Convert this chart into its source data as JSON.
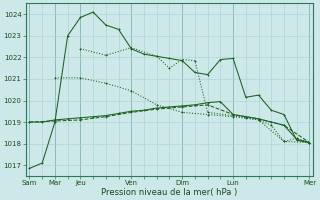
{
  "xlabel": "Pression niveau de la mer( hPa )",
  "bg_color": "#cce8e8",
  "grid_color": "#aacfcf",
  "line_color": "#1a6020",
  "ylim": [
    1016.5,
    1024.5
  ],
  "xlim": [
    -0.3,
    22.3
  ],
  "xtick_major_labels": [
    "Sam",
    "Mar",
    "Jeu",
    "Ven",
    "Dim",
    "Lun",
    "Mer"
  ],
  "xtick_major_positions": [
    0,
    2,
    4,
    8,
    12,
    16,
    22
  ],
  "ytick_values": [
    1017,
    1018,
    1019,
    1020,
    1021,
    1022,
    1023,
    1024
  ],
  "line1_x": [
    0,
    1,
    2,
    3,
    4,
    5,
    6,
    7,
    8,
    9,
    10,
    11,
    12,
    13,
    14,
    15,
    16,
    17,
    18,
    19,
    20,
    21,
    22
  ],
  "line1_y": [
    1016.85,
    1017.1,
    1019.0,
    1023.0,
    1023.85,
    1024.1,
    1023.5,
    1023.3,
    1022.4,
    1022.15,
    1022.05,
    1021.95,
    1021.85,
    1021.3,
    1021.2,
    1021.9,
    1021.95,
    1020.15,
    1020.25,
    1019.55,
    1019.35,
    1018.15,
    1018.05
  ],
  "line1_style": "-",
  "line2_x": [
    0,
    1,
    2,
    3,
    4,
    5,
    6,
    7,
    8,
    9,
    10,
    11,
    12,
    13,
    14,
    15,
    16,
    17,
    18,
    19,
    20,
    21,
    22
  ],
  "line2_y": [
    1019.0,
    1019.0,
    1019.1,
    1019.15,
    1019.2,
    1019.25,
    1019.3,
    1019.4,
    1019.5,
    1019.55,
    1019.65,
    1019.7,
    1019.75,
    1019.8,
    1019.9,
    1019.95,
    1019.35,
    1019.25,
    1019.15,
    1019.0,
    1018.85,
    1018.2,
    1018.05
  ],
  "line2_style": "-",
  "line3_x": [
    0,
    2,
    4,
    6,
    8,
    10,
    12,
    14,
    16,
    18,
    20,
    22
  ],
  "line3_y": [
    1019.0,
    1019.05,
    1019.1,
    1019.25,
    1019.45,
    1019.6,
    1019.7,
    1019.8,
    1019.35,
    1019.15,
    1018.85,
    1018.05
  ],
  "line3_style": "--",
  "line4_x": [
    2,
    4,
    6,
    8,
    10,
    12,
    14,
    16,
    18,
    20,
    22
  ],
  "line4_y": [
    1021.05,
    1021.05,
    1020.8,
    1020.45,
    1019.8,
    1019.45,
    1019.35,
    1019.25,
    1019.1,
    1018.1,
    1018.05
  ],
  "line4_style": ":",
  "line5_x": [
    4,
    6,
    8,
    10,
    11,
    12,
    13,
    14,
    16,
    17,
    18,
    19,
    20,
    21,
    22
  ],
  "line5_y": [
    1022.4,
    1022.1,
    1022.45,
    1022.05,
    1021.5,
    1021.9,
    1021.85,
    1019.45,
    1019.3,
    1019.2,
    1019.1,
    1018.85,
    1018.1,
    1018.25,
    1018.05
  ],
  "line5_style": ":"
}
